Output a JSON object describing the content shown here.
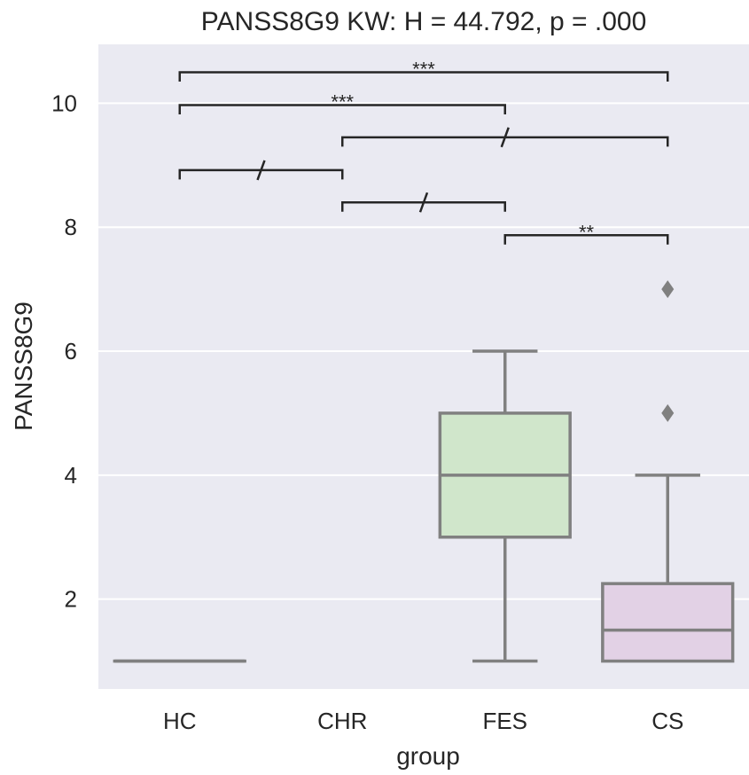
{
  "chart_data": {
    "type": "box",
    "title": "PANSS8G9 KW: H = 44.792, p = .000",
    "xlabel": "group",
    "ylabel": "PANSS8G9",
    "categories": [
      "HC",
      "CHR",
      "FES",
      "CS"
    ],
    "ylim": [
      0.55,
      10.95
    ],
    "yticks": [
      2,
      4,
      6,
      8,
      10
    ],
    "grid": true,
    "boxes": [
      {
        "group": "HC",
        "whisker_low": 1,
        "q1": 1,
        "median": 1,
        "q3": 1,
        "whisker_high": 1,
        "fill": "#4c72b0",
        "outliers": []
      },
      {
        "group": "CHR",
        "empty": true,
        "outliers": []
      },
      {
        "group": "FES",
        "whisker_low": 1,
        "q1": 3,
        "median": 4,
        "q3": 5,
        "whisker_high": 6,
        "fill": "#d0e6cb",
        "outliers": []
      },
      {
        "group": "CS",
        "whisker_low": 1,
        "q1": 1,
        "median": 1.5,
        "q3": 2.25,
        "whisker_high": 4,
        "fill": "#e2d1e5",
        "outliers": [
          5,
          7
        ]
      }
    ],
    "comparisons": [
      {
        "from": "HC",
        "to": "CS",
        "y": 10.35,
        "tip": 10.5,
        "label": "***"
      },
      {
        "from": "HC",
        "to": "FES",
        "y": 9.82,
        "tip": 9.97,
        "label": "***"
      },
      {
        "from": "CHR",
        "to": "CS",
        "y": 9.3,
        "tip": 9.45,
        "label": "/"
      },
      {
        "from": "HC",
        "to": "CHR",
        "y": 8.77,
        "tip": 8.92,
        "label": "/"
      },
      {
        "from": "CHR",
        "to": "FES",
        "y": 8.25,
        "tip": 8.4,
        "label": "/"
      },
      {
        "from": "FES",
        "to": "CS",
        "y": 7.72,
        "tip": 7.87,
        "label": "**"
      }
    ],
    "colors": {
      "plot_bg": "#eaeaf2",
      "grid": "#ffffff",
      "box_line": "#808080",
      "bracket": "#262626",
      "text": "#262626"
    }
  }
}
